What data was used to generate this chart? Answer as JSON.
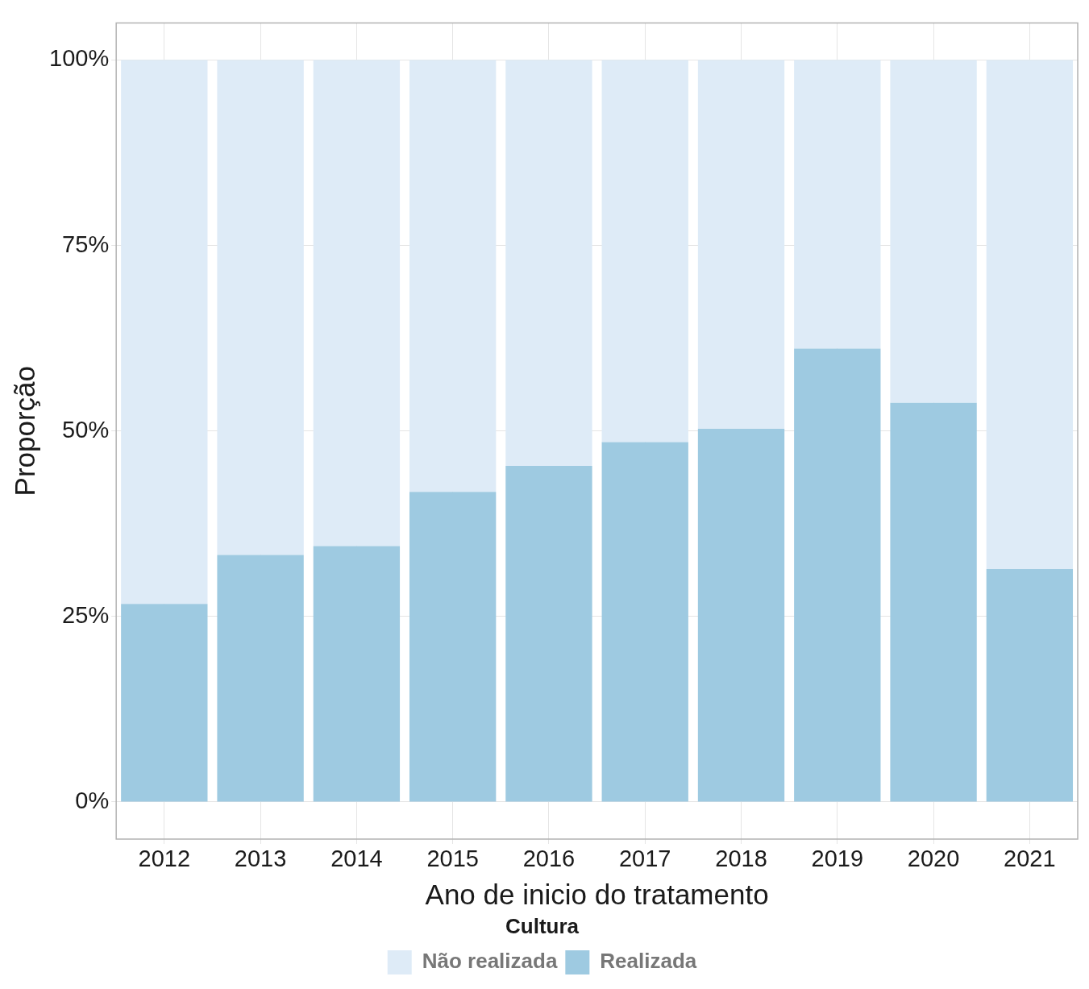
{
  "chart_data": {
    "type": "bar",
    "stacked": true,
    "xlabel": "Ano de inicio do tratamento",
    "ylabel": "Proporção",
    "legend_title": "Cultura",
    "categories": [
      "2012",
      "2013",
      "2014",
      "2015",
      "2016",
      "2017",
      "2018",
      "2019",
      "2020",
      "2021"
    ],
    "series": [
      {
        "name": "Realizada",
        "color": "#9ecae1",
        "values": [
          26.7,
          33.3,
          34.5,
          41.8,
          45.3,
          48.5,
          50.3,
          61.1,
          53.8,
          31.4
        ]
      },
      {
        "name": "Não realizada",
        "color": "#deebf7",
        "values": [
          73.3,
          66.7,
          65.5,
          58.2,
          54.7,
          51.5,
          49.7,
          38.9,
          46.2,
          68.6
        ]
      }
    ],
    "ylim": [
      -5,
      105
    ],
    "yticks": [
      {
        "value": 0,
        "label": "0%"
      },
      {
        "value": 25,
        "label": "25%"
      },
      {
        "value": 50,
        "label": "50%"
      },
      {
        "value": 75,
        "label": "75%"
      },
      {
        "value": 100,
        "label": "100%"
      }
    ],
    "grid": true,
    "legend": "bottom"
  }
}
